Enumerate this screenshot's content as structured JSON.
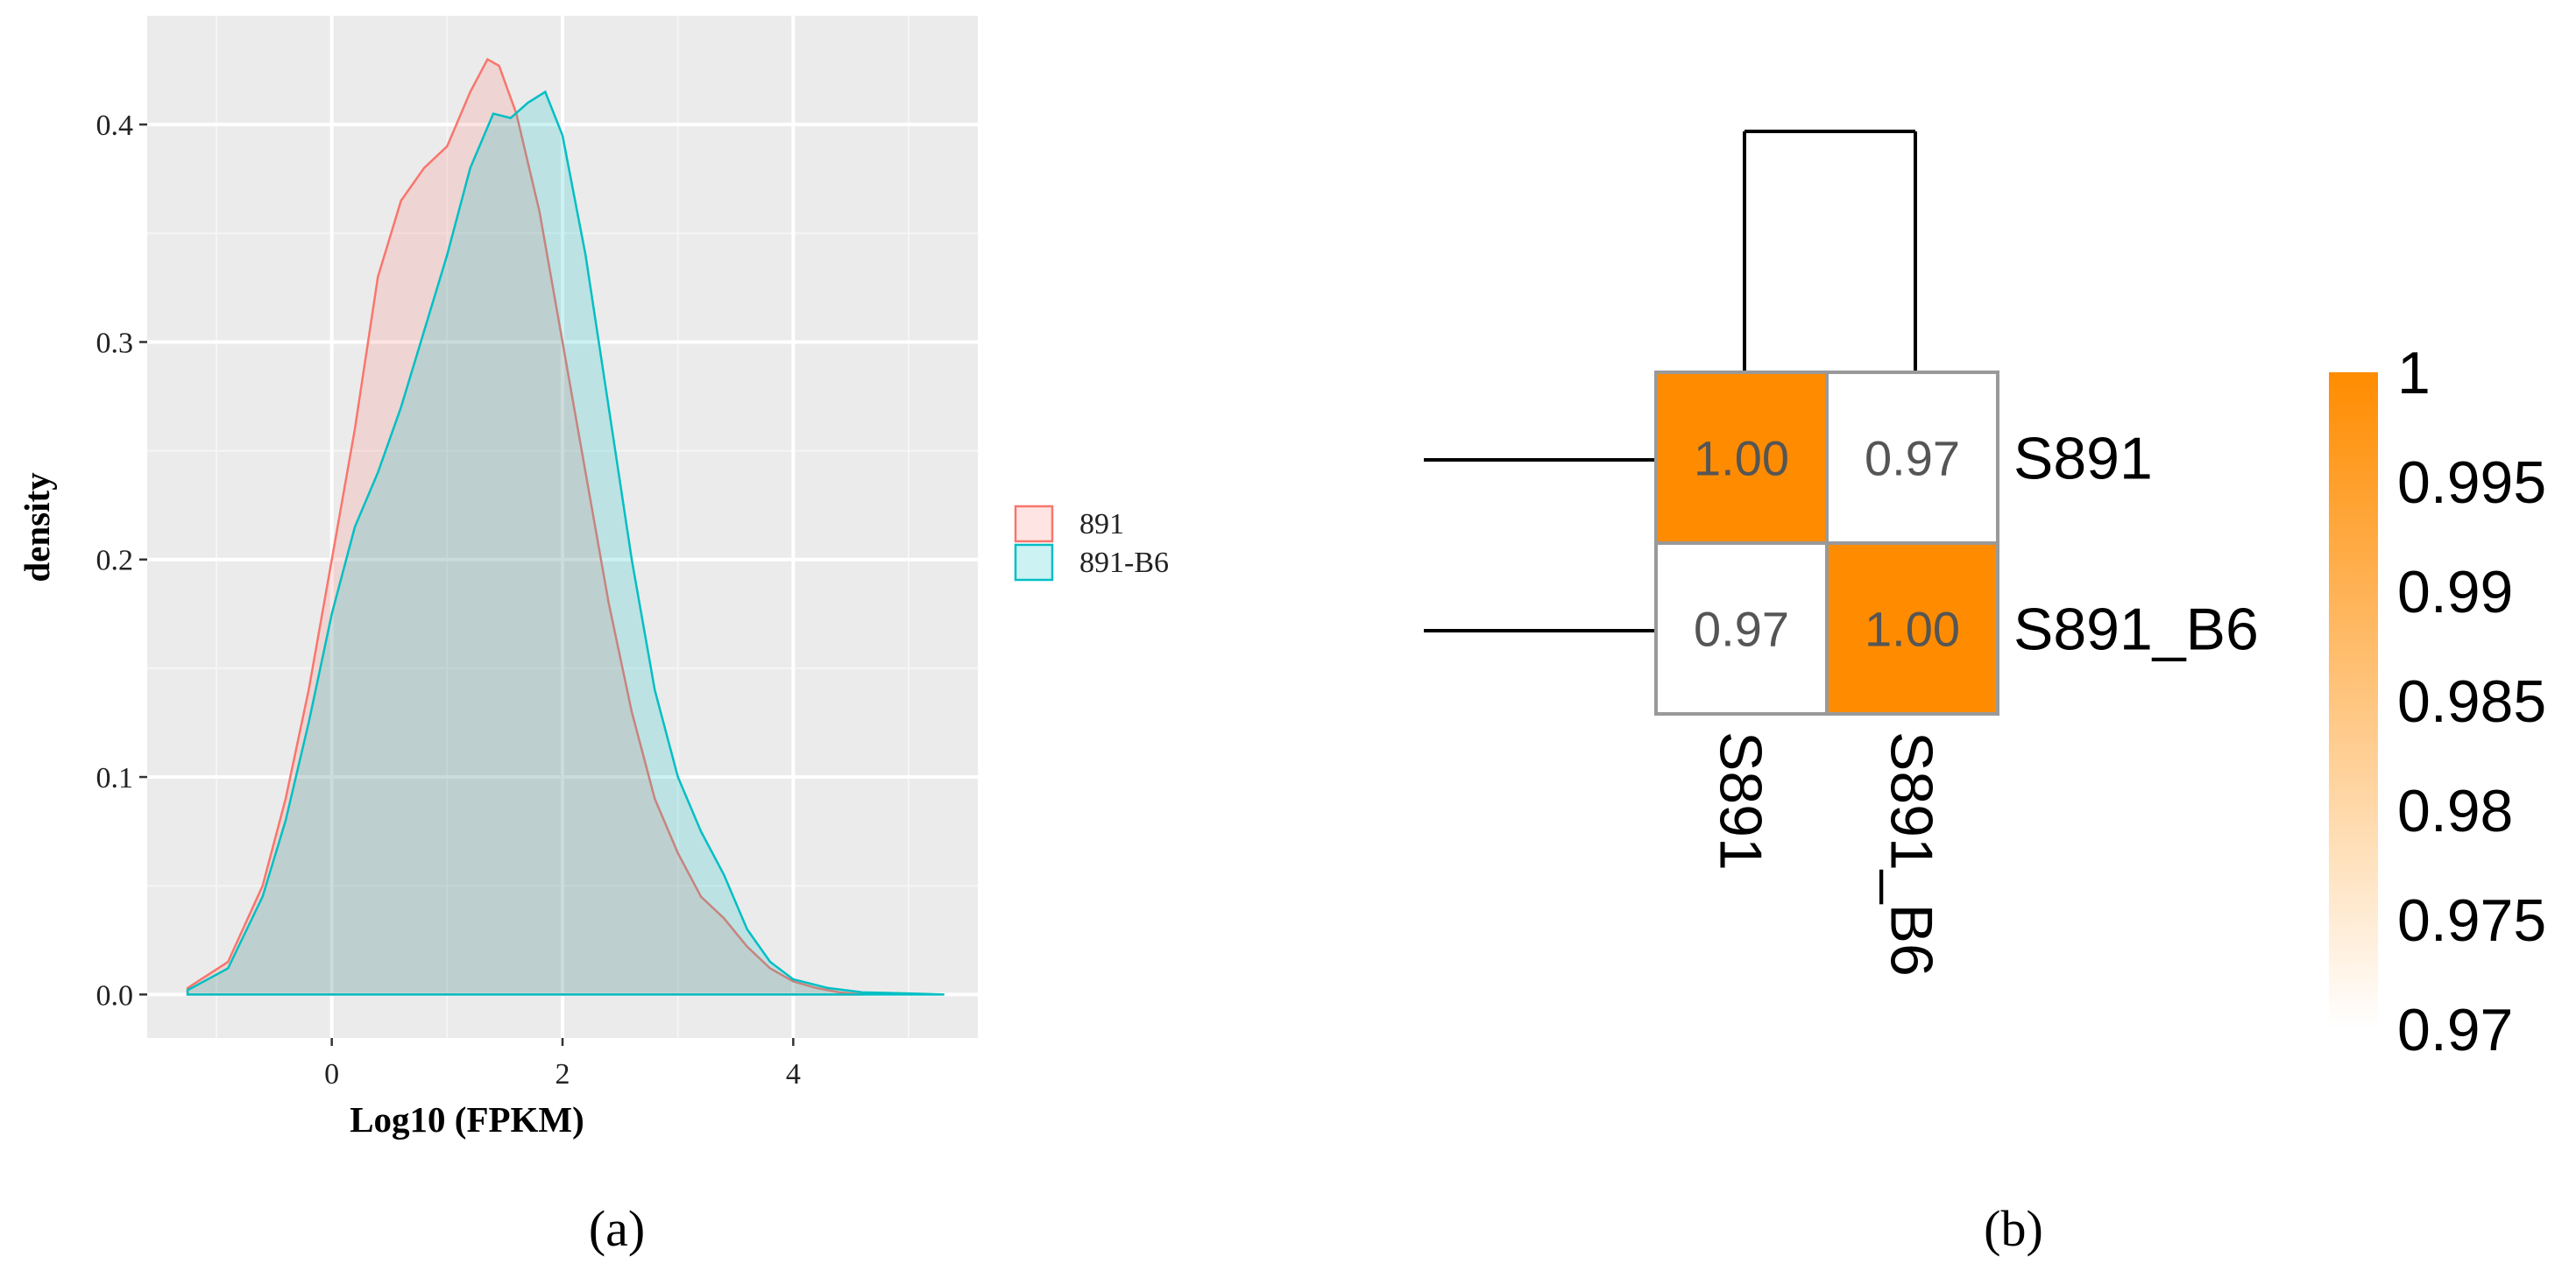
{
  "chart_data": [
    {
      "type": "area",
      "panel_label": "(a)",
      "xlabel": "Log10 (FPKM)",
      "ylabel": "density",
      "xlim": [
        -1.6,
        5.6
      ],
      "ylim": [
        -0.02,
        0.45
      ],
      "x_ticks": [
        0,
        2,
        4
      ],
      "x_tick_labels": [
        "0",
        "2",
        "4"
      ],
      "y_ticks": [
        0.0,
        0.1,
        0.2,
        0.3,
        0.4
      ],
      "y_tick_labels": [
        "0.0",
        "0.1",
        "0.2",
        "0.3",
        "0.4"
      ],
      "grid": true,
      "legend_position": "right",
      "series": [
        {
          "name": "891",
          "fill": "#F8766D",
          "line": "#F8766D",
          "x": [
            -1.25,
            -0.9,
            -0.6,
            -0.4,
            -0.2,
            0.0,
            0.2,
            0.4,
            0.6,
            0.8,
            1.0,
            1.2,
            1.35,
            1.45,
            1.6,
            1.8,
            2.0,
            2.2,
            2.4,
            2.6,
            2.8,
            3.0,
            3.2,
            3.4,
            3.6,
            3.8,
            4.0,
            4.2,
            4.4,
            4.6
          ],
          "y": [
            0.003,
            0.015,
            0.05,
            0.09,
            0.14,
            0.2,
            0.26,
            0.33,
            0.365,
            0.38,
            0.39,
            0.415,
            0.43,
            0.427,
            0.405,
            0.36,
            0.3,
            0.24,
            0.18,
            0.13,
            0.09,
            0.065,
            0.045,
            0.035,
            0.022,
            0.012,
            0.006,
            0.003,
            0.001,
            0.0
          ]
        },
        {
          "name": "891-B6",
          "fill": "#00BFC4",
          "line": "#00BFC4",
          "x": [
            -1.25,
            -0.9,
            -0.6,
            -0.4,
            -0.2,
            0.0,
            0.2,
            0.4,
            0.6,
            0.8,
            1.0,
            1.2,
            1.4,
            1.55,
            1.7,
            1.85,
            2.0,
            2.2,
            2.4,
            2.6,
            2.8,
            3.0,
            3.2,
            3.4,
            3.6,
            3.8,
            4.0,
            4.3,
            4.6,
            5.0,
            5.3
          ],
          "y": [
            0.002,
            0.012,
            0.045,
            0.08,
            0.125,
            0.175,
            0.215,
            0.24,
            0.27,
            0.305,
            0.34,
            0.38,
            0.405,
            0.403,
            0.41,
            0.415,
            0.395,
            0.34,
            0.27,
            0.2,
            0.14,
            0.1,
            0.075,
            0.055,
            0.03,
            0.015,
            0.007,
            0.003,
            0.001,
            0.0005,
            0.0
          ]
        }
      ]
    },
    {
      "type": "heatmap",
      "panel_label": "(b)",
      "rows": [
        "S891",
        "S891_B6"
      ],
      "columns": [
        "S891",
        "S891_B6"
      ],
      "values": [
        [
          1.0,
          0.97
        ],
        [
          0.97,
          1.0
        ]
      ],
      "cell_labels": [
        [
          "1.00",
          "0.97"
        ],
        [
          "0.97",
          "1.00"
        ]
      ],
      "colorbar": {
        "min": 0.97,
        "max": 1,
        "low_color": "#FFFFFF",
        "high_color": "#FF8C00",
        "ticks": [
          1,
          0.995,
          0.99,
          0.985,
          0.98,
          0.975,
          0.97
        ],
        "tick_labels": [
          "1",
          "0.995",
          "0.99",
          "0.985",
          "0.98",
          "0.975",
          "0.97"
        ]
      },
      "dendrogram": true
    }
  ]
}
